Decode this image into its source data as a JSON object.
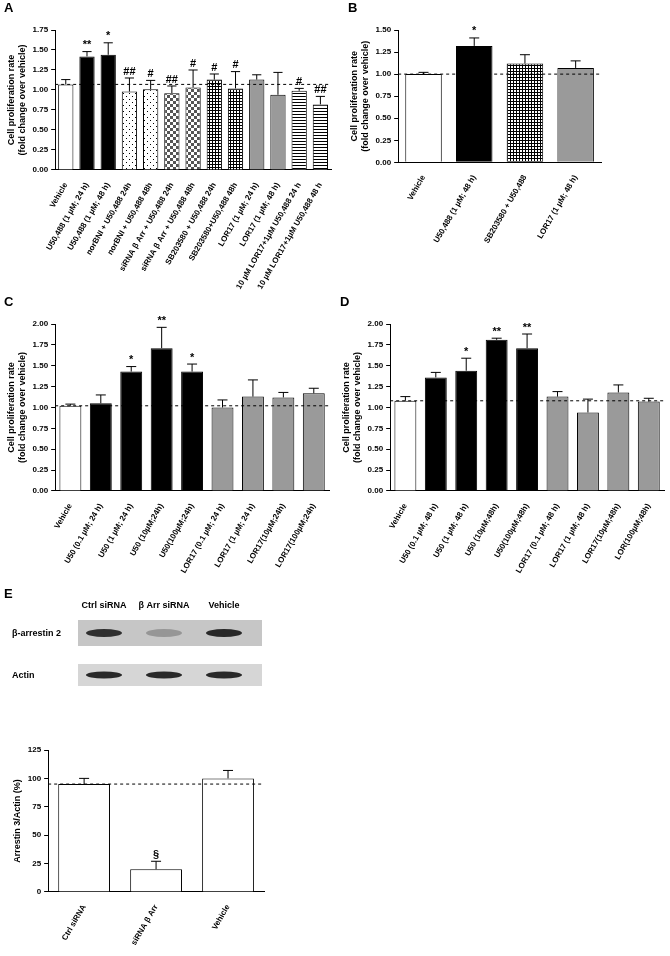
{
  "chart_data": [
    {
      "panel": "A",
      "type": "bar",
      "categories": [
        "Vehicle",
        "U50,488 (1 µM; 24 h)",
        "U50,488 (1 µM; 48 h)",
        "norBNI + U50,488 24h",
        "norBNI + U50,488 48h",
        "siRNA β Arr + U50,488 24h",
        "siRNA β Arr + U50,488 48h",
        "SB203580 + U50,488 24h",
        "SB203580+U50,488 48h",
        "LOR17 (1 µM; 24 h)",
        "LOR17 (1 µM; 48 h)",
        "10 µM LOR17+1µM U50,488 24 h",
        "10 µM LOR17+1µM U50,488 48 h"
      ],
      "values": [
        1.07,
        1.42,
        1.44,
        0.98,
        1.01,
        0.96,
        1.03,
        1.13,
        1.02,
        1.13,
        0.94,
        0.99,
        0.82
      ],
      "errors": [
        0.06,
        0.06,
        0.15,
        0.17,
        0.11,
        0.09,
        0.22,
        0.07,
        0.21,
        0.06,
        0.28,
        0.03,
        0.1
      ],
      "annotations": [
        null,
        "**",
        "*",
        "##",
        "#",
        "##",
        "#",
        "#",
        "#",
        null,
        null,
        "#",
        "##"
      ],
      "colors": [
        "#ffffff",
        "#000000",
        "#000000",
        "#ffffff",
        "#ffffff",
        "#ffffff",
        "#ffffff",
        "#ffffff",
        "#ffffff",
        "#9a9a9a",
        "#9a9a9a",
        "#ffffff",
        "#ffffff"
      ],
      "y_label": [
        "Cell proliferation rate",
        "(fold change over vehicle)"
      ],
      "ylim": [
        0,
        1.75
      ],
      "yticks": [
        {
          "value": 0,
          "label": "0.00"
        },
        {
          "value": 0.25,
          "label": "0.25"
        },
        {
          "value": 0.5,
          "label": "0.50"
        },
        {
          "value": 0.75,
          "label": "0.75"
        },
        {
          "value": 1,
          "label": "1.00"
        },
        {
          "value": 1.25,
          "label": "1.25"
        },
        {
          "value": 1.5,
          "label": "1.50"
        },
        {
          "value": 1.75,
          "label": "1.75"
        }
      ],
      "grid": false
    },
    {
      "panel": "B",
      "type": "bar",
      "categories": [
        "Vehicle",
        "U50,488 (1 µM; 48 h)",
        "SB203580 + U50,488",
        "LOR17 (1 µM; 48 h)"
      ],
      "values": [
        1.0,
        1.32,
        1.12,
        1.07
      ],
      "errors": [
        0.02,
        0.09,
        0.1,
        0.08
      ],
      "annotations": [
        null,
        "*",
        null,
        null
      ],
      "colors": [
        "#ffffff",
        "#000000",
        "#ffffff",
        "#9a9a9a"
      ],
      "y_label": [
        "Cell proliferation rate",
        "(fold change over vehicle)"
      ],
      "ylim": [
        0,
        1.5
      ],
      "yticks": [
        {
          "value": 0,
          "label": "0.00"
        },
        {
          "value": 0.25,
          "label": "0.25"
        },
        {
          "value": 0.5,
          "label": "0.50"
        },
        {
          "value": 0.75,
          "label": "0.75"
        },
        {
          "value": 1,
          "label": "1.00"
        },
        {
          "value": 1.25,
          "label": "1.25"
        },
        {
          "value": 1.5,
          "label": "1.50"
        }
      ],
      "grid": false
    },
    {
      "panel": "C",
      "type": "bar",
      "categories": [
        "Vehicle",
        "U50 (0.1 µM; 24 h)",
        "U50 (1 µM; 24 h)",
        "U50 (10µM;24h)",
        "U50(100µM;24h)",
        "LOR17 (0.1 µM; 24 h)",
        "LOR17 (1 µM; 24 h)",
        "LOR17(10µM;24h)",
        "LOR17(100µM;24h)"
      ],
      "values": [
        1.02,
        1.05,
        1.43,
        1.71,
        1.43,
        1.0,
        1.13,
        1.12,
        1.17
      ],
      "errors": [
        0.02,
        0.1,
        0.06,
        0.25,
        0.09,
        0.09,
        0.2,
        0.06,
        0.06
      ],
      "annotations": [
        null,
        null,
        "*",
        "**",
        "*",
        null,
        null,
        null,
        null
      ],
      "colors": [
        "#ffffff",
        "#000000",
        "#000000",
        "#000000",
        "#000000",
        "#9a9a9a",
        "#9a9a9a",
        "#9a9a9a",
        "#9a9a9a"
      ],
      "y_label": [
        "Cell proliferation rate",
        "(fold change over vehicle)"
      ],
      "ylim": [
        0,
        2
      ],
      "yticks": [
        {
          "value": 0,
          "label": "0.00"
        },
        {
          "value": 0.25,
          "label": "0.25"
        },
        {
          "value": 0.5,
          "label": "0.50"
        },
        {
          "value": 0.75,
          "label": "0.75"
        },
        {
          "value": 1,
          "label": "1.00"
        },
        {
          "value": 1.25,
          "label": "1.25"
        },
        {
          "value": 1.5,
          "label": "1.50"
        },
        {
          "value": 1.75,
          "label": "1.75"
        },
        {
          "value": 2,
          "label": "2.00"
        }
      ],
      "grid": false
    },
    {
      "panel": "D",
      "type": "bar",
      "categories": [
        "Vehicle",
        "U50 (0.1 µM; 48 h)",
        "U50 (1 µM; 48 h)",
        "U50 (10µM;48h)",
        "U50(100µM;48h)",
        "LOR17 (0.1 µM; 48 h)",
        "LOR17 (1 µM; 48 h)",
        "LOR17(10µM;48h)",
        "LOR(100µM;48h)"
      ],
      "values": [
        1.08,
        1.36,
        1.44,
        1.81,
        1.71,
        1.13,
        0.94,
        1.18,
        1.07
      ],
      "errors": [
        0.05,
        0.06,
        0.15,
        0.02,
        0.17,
        0.06,
        0.16,
        0.09,
        0.04
      ],
      "annotations": [
        null,
        null,
        "*",
        "**",
        "**",
        null,
        null,
        null,
        null
      ],
      "colors": [
        "#ffffff",
        "#000000",
        "#000000",
        "#000000",
        "#000000",
        "#9a9a9a",
        "#9a9a9a",
        "#9a9a9a",
        "#9a9a9a"
      ],
      "y_label": [
        "Cell proliferation rate",
        "(fold change over vehicle)"
      ],
      "ylim": [
        0,
        2
      ],
      "yticks": [
        {
          "value": 0,
          "label": "0.00"
        },
        {
          "value": 0.25,
          "label": "0.25"
        },
        {
          "value": 0.5,
          "label": "0.50"
        },
        {
          "value": 0.75,
          "label": "0.75"
        },
        {
          "value": 1,
          "label": "1.00"
        },
        {
          "value": 1.25,
          "label": "1.25"
        },
        {
          "value": 1.5,
          "label": "1.50"
        },
        {
          "value": 1.75,
          "label": "1.75"
        },
        {
          "value": 2,
          "label": "2.00"
        }
      ],
      "grid": false
    },
    {
      "panel": "E",
      "type": "bar",
      "categories": [
        "Ctrl siRNA",
        "siRNA β Arr",
        "Vehicle"
      ],
      "values": [
        95,
        20,
        100
      ],
      "errors": [
        5,
        7,
        7
      ],
      "annotations": [
        null,
        "§",
        null
      ],
      "colors": [
        "#ffffff",
        "#ffffff",
        "#ffffff"
      ],
      "y_label": [
        "Arrestin 3/Actin (%)"
      ],
      "ylim": [
        0,
        125
      ],
      "yticks": [
        0,
        25,
        50,
        75,
        100,
        125
      ],
      "grid": false
    }
  ],
  "blot": {
    "columns": [
      "Ctrl siRNA",
      "β Arr siRNA",
      "Vehicle"
    ],
    "rows": [
      "β-arrestin 2",
      "Actin"
    ]
  }
}
